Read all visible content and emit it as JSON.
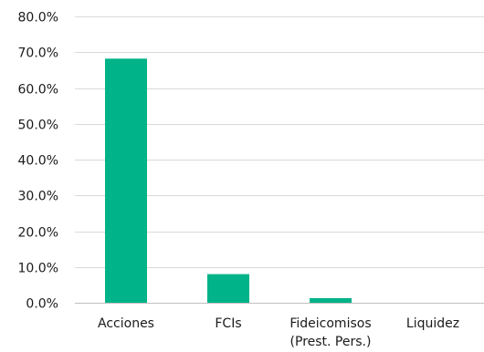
{
  "chart_data": {
    "type": "bar",
    "categories": [
      "Acciones",
      "FCIs",
      "Fideicomisos (Prest. Pers.)",
      "Liquidez"
    ],
    "category_label_lines": [
      [
        "Acciones"
      ],
      [
        "FCIs"
      ],
      [
        "Fideicomisos",
        "(Prest. Pers.)"
      ],
      [
        "Liquidez"
      ]
    ],
    "values": [
      68.2,
      8.0,
      1.3,
      0.0
    ],
    "y_ticks": [
      "0.0%",
      "10.0%",
      "20.0%",
      "30.0%",
      "40.0%",
      "50.0%",
      "60.0%",
      "70.0%",
      "80.0%"
    ],
    "ylim": [
      0,
      80
    ],
    "grid": true,
    "bar_color": "#00b389",
    "title": "",
    "xlabel": "",
    "ylabel": ""
  }
}
